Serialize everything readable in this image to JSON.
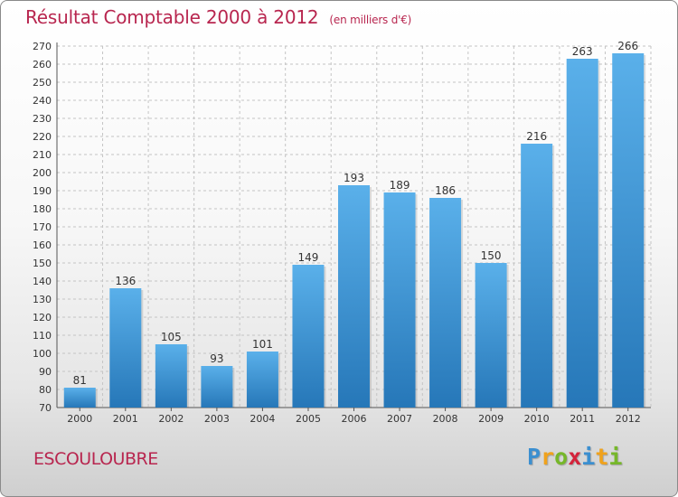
{
  "title": {
    "main": "Résultat Comptable 2000 à 2012",
    "sub": "(en milliers d'€)"
  },
  "commune": "ESCOULOUBRE",
  "logo": {
    "letters": [
      "P",
      "r",
      "o",
      "x",
      "i",
      "t",
      "i"
    ],
    "colors": [
      "#3b8fd0",
      "#f0a21c",
      "#76b72a",
      "#d4233b",
      "#3b8fd0",
      "#f0a21c",
      "#76b72a"
    ]
  },
  "colors": {
    "bar_light": "#5ab0ea",
    "bar_dark": "#2677b8",
    "grid": "#c4c4c4",
    "title": "#b8264f"
  },
  "chart_data": {
    "type": "bar",
    "title": "Résultat Comptable 2000 à 2012",
    "subtitle": "(en milliers d'€)",
    "xlabel": "",
    "ylabel": "",
    "categories": [
      "2000",
      "2001",
      "2002",
      "2003",
      "2004",
      "2005",
      "2006",
      "2007",
      "2008",
      "2009",
      "2010",
      "2011",
      "2012"
    ],
    "values": [
      81,
      136,
      105,
      93,
      101,
      149,
      193,
      189,
      186,
      150,
      216,
      263,
      266
    ],
    "ylim": [
      70,
      270
    ],
    "ytick_step": 10,
    "grid": true,
    "legend": "none"
  }
}
